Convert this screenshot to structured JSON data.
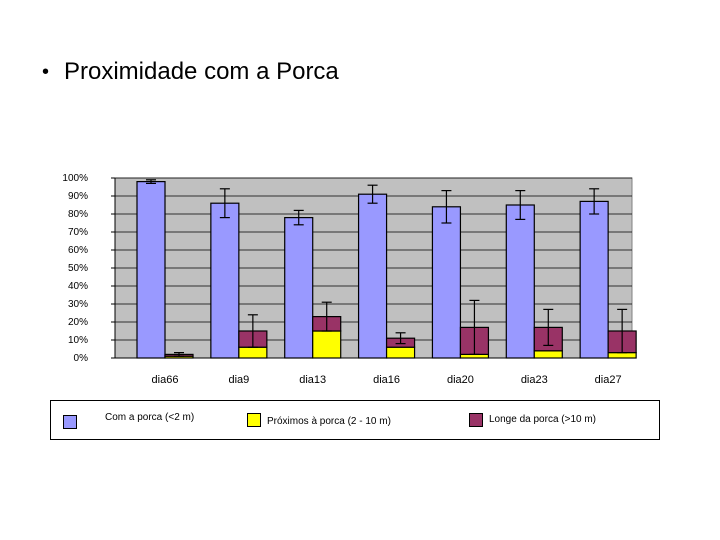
{
  "slide": {
    "bullet": "•",
    "title": "Proximidade com a Porca"
  },
  "colors": {
    "plot_background": "#c0c0c0",
    "bar_outline": "#000000"
  },
  "chart_data": {
    "type": "bar",
    "stacked": true,
    "categories": [
      "dia66",
      "dia9",
      "dia13",
      "dia16",
      "dia20",
      "dia23",
      "dia27"
    ],
    "y_tick_labels": [
      "0%",
      "10%",
      "20%",
      "30%",
      "40%",
      "50%",
      "60%",
      "70%",
      "80%",
      "90%",
      "100%"
    ],
    "ylim": [
      0,
      100
    ],
    "grid": true,
    "legend_position": "bottom",
    "series": [
      {
        "name": "Com a porca (<2 m)",
        "color": "#9999ff",
        "stack": "main",
        "values": [
          98,
          86,
          78,
          91,
          84,
          85,
          87
        ],
        "error": [
          1,
          8,
          4,
          5,
          9,
          8,
          7
        ]
      },
      {
        "name": "Próximos à porca (2 - 10 m)",
        "color": "#ffff00",
        "stack": "other",
        "values": [
          1,
          6,
          15,
          6,
          2,
          4,
          3
        ],
        "error": [
          0,
          0,
          0,
          0,
          0,
          0,
          0
        ]
      },
      {
        "name": "Longe da porca (>10 m)",
        "color": "#993366",
        "stack": "other",
        "values": [
          1,
          9,
          8,
          5,
          15,
          13,
          12
        ],
        "error": [
          1,
          9,
          8,
          3,
          15,
          10,
          12
        ]
      }
    ]
  }
}
